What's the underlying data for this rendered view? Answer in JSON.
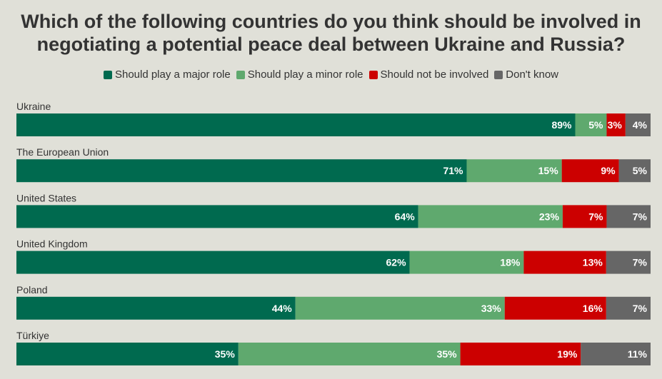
{
  "colors": {
    "background": "#e0e0d8",
    "major": "#006a4f",
    "minor": "#5fa96e",
    "not_involved": "#cc0000",
    "dont_know": "#666666"
  },
  "chart_data": {
    "type": "bar",
    "orientation": "horizontal",
    "stacked": true,
    "title": "Which of the following countries do you think should be involved in negotiating a potential peace deal between Ukraine and Russia?",
    "legend_position": "top",
    "categories": [
      "Ukraine",
      "The European Union",
      "United States",
      "United Kingdom",
      "Poland",
      "Türkiye"
    ],
    "series": [
      {
        "name": "Should play a major role",
        "color": "#006a4f",
        "values": [
          89,
          71,
          64,
          62,
          44,
          35
        ],
        "labels": [
          "89%",
          "71%",
          "64%",
          "62%",
          "44%",
          "35%"
        ]
      },
      {
        "name": "Should play a minor role",
        "color": "#5fa96e",
        "values": [
          5,
          15,
          23,
          18,
          33,
          35
        ],
        "labels": [
          "5%",
          "15%",
          "23%",
          "18%",
          "33%",
          "35%"
        ]
      },
      {
        "name": "Should not be involved",
        "color": "#cc0000",
        "values": [
          3,
          9,
          7,
          13,
          16,
          19
        ],
        "labels": [
          "3%",
          "9%",
          "7%",
          "13%",
          "16%",
          "19%"
        ]
      },
      {
        "name": "Don't know",
        "color": "#666666",
        "values": [
          4,
          5,
          7,
          7,
          7,
          11
        ],
        "labels": [
          "4%",
          "5%",
          "7%",
          "7%",
          "7%",
          "11%"
        ]
      }
    ]
  }
}
